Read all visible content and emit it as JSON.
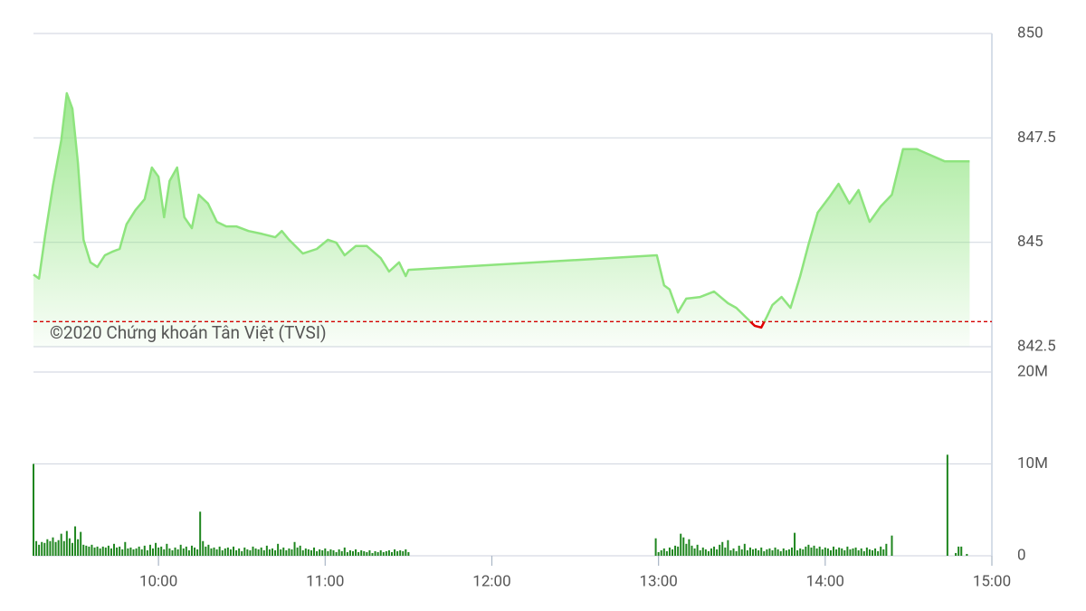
{
  "chart_data": [
    {
      "type": "line",
      "watermark": "©2020 Chứng khoán Tân Việt (TVSI)",
      "color": "#8ee47e",
      "below_color": "#e00000",
      "reference": 843.1,
      "reference_color": "#d40000",
      "xlim": [
        555,
        900
      ],
      "ylim": [
        842.5,
        850
      ],
      "yticks": [
        850,
        847.5,
        845,
        842.5
      ],
      "grid": true,
      "x": [
        555,
        557,
        559.2,
        562,
        565,
        567,
        569,
        571,
        573,
        575.5,
        578,
        580.7,
        583.6,
        586,
        588.5,
        591.7,
        595,
        597.6,
        600,
        602,
        604,
        606.7,
        609.3,
        612,
        614.5,
        617.8,
        621,
        624.4,
        628,
        632.4,
        637.3,
        642,
        644.4,
        647,
        652,
        657,
        661,
        664,
        667,
        671,
        675,
        680,
        683,
        686.6,
        689,
        690,
        779.4,
        782,
        784,
        787,
        790,
        795,
        800,
        805,
        808,
        812,
        814.6,
        817,
        819,
        821,
        824.3,
        827.5,
        831,
        834,
        837.3,
        841.5,
        844.8,
        848.7,
        852,
        856,
        860,
        864,
        868,
        873,
        883,
        892
      ],
      "values": [
        844.23,
        844.13,
        845.17,
        846.36,
        847.44,
        848.57,
        848.2,
        846.9,
        845.06,
        844.52,
        844.41,
        844.69,
        844.78,
        844.84,
        845.43,
        845.77,
        846.03,
        846.79,
        846.57,
        845.6,
        846.47,
        846.79,
        845.6,
        845.34,
        846.14,
        845.93,
        845.49,
        845.38,
        845.38,
        845.27,
        845.2,
        845.12,
        845.27,
        845.06,
        844.73,
        844.84,
        845.06,
        844.99,
        844.69,
        844.91,
        844.91,
        844.62,
        844.3,
        844.52,
        844.19,
        844.34,
        844.69,
        843.97,
        843.87,
        843.32,
        843.65,
        843.69,
        843.82,
        843.54,
        843.43,
        843.17,
        843.0,
        842.96,
        843.22,
        843.5,
        843.69,
        843.43,
        844.19,
        844.95,
        845.71,
        846.08,
        846.4,
        845.93,
        846.25,
        845.49,
        845.86,
        846.14,
        847.23,
        847.23,
        846.94,
        846.94
      ]
    },
    {
      "type": "bar",
      "color": "#1f861f",
      "xlim": [
        555,
        900
      ],
      "ylim": [
        0,
        20000000
      ],
      "grid": true,
      "yticks": [
        0,
        {
          "value": 10000000,
          "label": "10M"
        },
        {
          "value": 20000000,
          "label": "20M"
        }
      ],
      "xticks": [
        {
          "value": 600,
          "label": "10:00"
        },
        {
          "value": 660,
          "label": "11:00"
        },
        {
          "value": 720,
          "label": "12:00"
        },
        {
          "value": 780,
          "label": "13:00"
        },
        {
          "value": 840,
          "label": "14:00"
        },
        {
          "value": 900,
          "label": "15:00"
        }
      ],
      "x": [
        555,
        556,
        557,
        558,
        559,
        560,
        561,
        562,
        563,
        564,
        565,
        566,
        567,
        568,
        569,
        570,
        571,
        572,
        573,
        574,
        575,
        576,
        577,
        578,
        579,
        580,
        581,
        582,
        583,
        584,
        585,
        586,
        587,
        588,
        589,
        590,
        591,
        592,
        593,
        594,
        595,
        596,
        597,
        598,
        599,
        600,
        601,
        602,
        603,
        604,
        605,
        606,
        607,
        608,
        609,
        610,
        611,
        612,
        613,
        614,
        615,
        616,
        617,
        618,
        619,
        620,
        621,
        622,
        623,
        624,
        625,
        626,
        627,
        628,
        629,
        630,
        631,
        632,
        633,
        634,
        635,
        636,
        637,
        638,
        639,
        640,
        641,
        642,
        643,
        644,
        645,
        646,
        647,
        648,
        649,
        650,
        651,
        652,
        653,
        654,
        655,
        656,
        657,
        658,
        659,
        660,
        661,
        662,
        663,
        664,
        665,
        666,
        667,
        668,
        669,
        670,
        671,
        672,
        673,
        674,
        675,
        676,
        677,
        678,
        679,
        680,
        681,
        682,
        683,
        684,
        685,
        686,
        687,
        688,
        689,
        690,
        779,
        780,
        781,
        782,
        783,
        784,
        785,
        786,
        787,
        788,
        789,
        790,
        791,
        792,
        793,
        794,
        795,
        796,
        797,
        798,
        799,
        800,
        801,
        802,
        803,
        804,
        805,
        806,
        807,
        808,
        809,
        810,
        811,
        812,
        813,
        814,
        815,
        816,
        817,
        818,
        819,
        820,
        821,
        822,
        823,
        824,
        825,
        826,
        827,
        828,
        829,
        830,
        831,
        832,
        833,
        834,
        835,
        836,
        837,
        838,
        839,
        840,
        841,
        842,
        843,
        844,
        845,
        846,
        847,
        848,
        849,
        850,
        851,
        852,
        853,
        854,
        855,
        856,
        857,
        858,
        859,
        860,
        861,
        862,
        864,
        884,
        887,
        888,
        889,
        891
      ],
      "values": [
        10000000.0,
        1600000.0,
        1200000.0,
        1500000.0,
        1400000.0,
        1800000.0,
        1600000.0,
        2000000.0,
        1500000.0,
        1700000.0,
        2400000.0,
        1600000.0,
        2700000.0,
        1900000.0,
        1400000.0,
        3200000.0,
        1800000.0,
        2600000.0,
        1200000.0,
        1100000.0,
        1000000.0,
        1200000.0,
        900000.0,
        1000000.0,
        800000.0,
        1000000.0,
        900000.0,
        1100000.0,
        800000.0,
        1300000.0,
        900000.0,
        1000000.0,
        700000.0,
        1500000.0,
        800000.0,
        900000.0,
        700000.0,
        800000.0,
        1000000.0,
        700000.0,
        1100000.0,
        600000.0,
        1200000.0,
        800000.0,
        1400000.0,
        900000.0,
        1000000.0,
        700000.0,
        1300000.0,
        800000.0,
        600000.0,
        900000.0,
        700000.0,
        1200000.0,
        800000.0,
        1000000.0,
        600000.0,
        1100000.0,
        900000.0,
        700000.0,
        4800000.0,
        1600000.0,
        1000000.0,
        1200000.0,
        800000.0,
        900000.0,
        700000.0,
        1000000.0,
        600000.0,
        800000.0,
        900000.0,
        700000.0,
        1000000.0,
        600000.0,
        800000.0,
        500000.0,
        900000.0,
        700000.0,
        600000.0,
        1000000.0,
        800000.0,
        700000.0,
        900000.0,
        600000.0,
        1100000.0,
        700000.0,
        800000.0,
        600000.0,
        1300000.0,
        700000.0,
        900000.0,
        600000.0,
        800000.0,
        700000.0,
        1500000.0,
        900000.0,
        1100000.0,
        600000.0,
        800000.0,
        700000.0,
        600000.0,
        900000.0,
        500000.0,
        700000.0,
        600000.0,
        800000.0,
        500000.0,
        700000.0,
        600000.0,
        400000.0,
        700000.0,
        500000.0,
        900000.0,
        400000.0,
        600000.0,
        500000.0,
        700000.0,
        400000.0,
        600000.0,
        500000.0,
        400000.0,
        600000.0,
        300000.0,
        500000.0,
        400000.0,
        600000.0,
        400000.0,
        500000.0,
        600000.0,
        400000.0,
        700000.0,
        500000.0,
        600000.0,
        500000.0,
        700000.0,
        400000.0,
        1900000.0,
        400000.0,
        600000.0,
        800000.0,
        500000.0,
        900000.0,
        700000.0,
        1100000.0,
        1000000.0,
        2400000.0,
        2000000.0,
        1300000.0,
        1800000.0,
        1100000.0,
        800000.0,
        1200000.0,
        600000.0,
        900000.0,
        700000.0,
        500000.0,
        800000.0,
        1000000.0,
        700000.0,
        1200000.0,
        1500000.0,
        900000.0,
        1700000.0,
        600000.0,
        800000.0,
        500000.0,
        1100000.0,
        700000.0,
        1300000.0,
        600000.0,
        900000.0,
        700000.0,
        800000.0,
        600000.0,
        900000.0,
        500000.0,
        700000.0,
        800000.0,
        600000.0,
        900000.0,
        700000.0,
        500000.0,
        800000.0,
        600000.0,
        700000.0,
        900000.0,
        2500000.0,
        600000.0,
        800000.0,
        700000.0,
        1000000.0,
        1200000.0,
        900000.0,
        1100000.0,
        800000.0,
        1000000.0,
        700000.0,
        900000.0,
        800000.0,
        600000.0,
        1000000.0,
        700000.0,
        900000.0,
        800000.0,
        600000.0,
        1000000.0,
        700000.0,
        800000.0,
        900000.0,
        600000.0,
        800000.0,
        500000.0,
        900000.0,
        700000.0,
        600000.0,
        800000.0,
        500000.0,
        1000000.0,
        700000.0,
        1300000.0,
        2200000.0,
        11000000.0,
        300000.0,
        1000000.0,
        1000000.0,
        200000.0
      ]
    }
  ]
}
